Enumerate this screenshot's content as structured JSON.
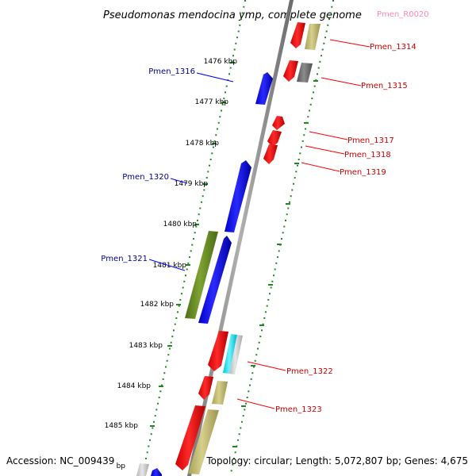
{
  "title": "Pseudomonas mendocina ymp, complete genome",
  "footer": {
    "accession": "Accession: NC_009439",
    "topology": "Topology: circular; Length: 5,072,807 bp; Genes: 4,675"
  },
  "ticks": [
    "1476 kbp",
    "1477 kbp",
    "1478 kbp",
    "1479 kbp",
    "1480 kbp",
    "1481 kbp",
    "1482 kbp",
    "1483 kbp",
    "1484 kbp",
    "1485 kbp",
    "bp"
  ],
  "gene_labels": {
    "pmen_r0020": "Pmen_R0020",
    "pmen_1314": "Pmen_1314",
    "pmen_1315": "Pmen_1315",
    "pmen_1316": "Pmen_1316",
    "pmen_1317": "Pmen_1317",
    "pmen_1318": "Pmen_1318",
    "pmen_1319": "Pmen_1319",
    "pmen_1320": "Pmen_1320",
    "pmen_1321": "Pmen_1321",
    "pmen_1322": "Pmen_1322",
    "pmen_1323": "Pmen_1323"
  },
  "colors": {
    "backbone": "#8a8a8a",
    "tick_dots": "#1e8a1e",
    "gene_red": "#ff0000",
    "gene_blue": "#0000ff",
    "gene_olive": "#6b8e23",
    "gene_khaki": "#bdb76b",
    "gene_gray": "#7a7a7a",
    "gene_cyan": "#00e5ff",
    "label_blue": "#00008b",
    "label_red": "#cc0000",
    "label_pink": "#ff88aa"
  }
}
